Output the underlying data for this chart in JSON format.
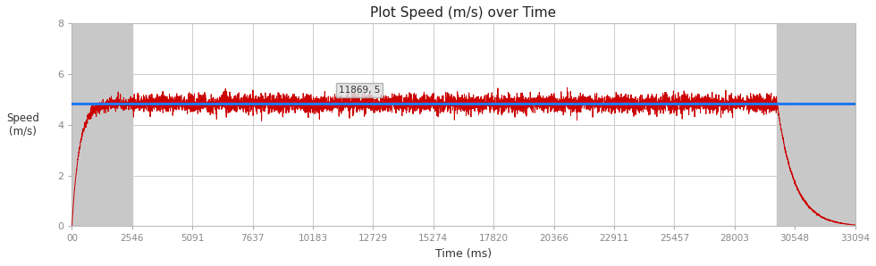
{
  "title": "Plot Speed (m/s) over Time",
  "xlabel": "Time (ms)",
  "ylabel": "Speed\n(m/s)",
  "xlim": [
    0,
    33094
  ],
  "ylim": [
    0,
    8
  ],
  "yticks": [
    0,
    2,
    4,
    6,
    8
  ],
  "xtick_labels": [
    "00",
    "2546",
    "5091",
    "7637",
    "10183",
    "12729",
    "15274",
    "17820",
    "20366",
    "22911",
    "25457",
    "28003",
    "30548",
    "33094"
  ],
  "xtick_values": [
    0,
    2546,
    5091,
    7637,
    10183,
    12729,
    15274,
    17820,
    20366,
    22911,
    25457,
    28003,
    30548,
    33094
  ],
  "avg_speed": 4.83,
  "avg_line_color": "#2277ee",
  "line_color": "#cc0000",
  "bg_gray_color": "#c8c8c8",
  "bg_white_color": "#ffffff",
  "fig_bg_color": "#ffffff",
  "gray_region_1_start": 0,
  "gray_region_1_end": 2546,
  "gray_region_2_start": 29800,
  "gray_region_2_end": 33094,
  "accel_phase_end": 2546,
  "decel_phase_start": 29800,
  "total_time": 33094,
  "tooltip_x": 11869,
  "tooltip_y": 5.0,
  "tooltip_text": "11869, 5",
  "noise_std": 0.18,
  "accel_noise_std": 0.12
}
